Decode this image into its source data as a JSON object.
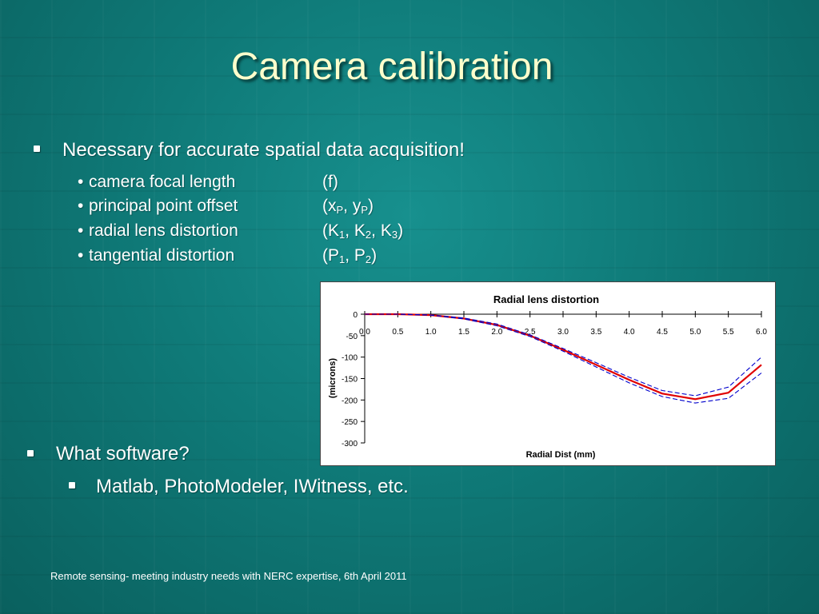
{
  "slide": {
    "title": "Camera calibration",
    "bullets": {
      "main1": "Necessary for accurate spatial data acquisition!",
      "params": [
        {
          "name": "camera focal length",
          "sym_open": "(f)"
        },
        {
          "name": "principal point offset",
          "sym_open": "(x",
          "sub1": "P",
          "mid1": ", y",
          "sub2": "P",
          "close": ")"
        },
        {
          "name": "radial lens distortion",
          "sym_open": "(K",
          "sub1": "1",
          "mid1": ", K",
          "sub2": "2",
          "mid2": ", K",
          "sub3": "3",
          "close": ")"
        },
        {
          "name": "tangential distortion",
          "sym_open": "(P",
          "sub1": "1",
          "mid1": ", P",
          "sub2": "2",
          "close": ")"
        }
      ],
      "main2": "What software?",
      "sub2": "Matlab, PhotoModeler, IWitness, etc."
    },
    "footer": "Remote sensing- meeting industry needs with NERC expertise, 6th April 2011",
    "bullet_char": "•",
    "colors": {
      "title": "#ffffcc",
      "background": "#0f7a78"
    }
  },
  "chart_data": {
    "type": "line",
    "title": "Radial lens distortion",
    "xlabel": "Radial Dist (mm)",
    "ylabel": "(microns)",
    "x": [
      0.0,
      0.5,
      1.0,
      1.5,
      2.0,
      2.5,
      3.0,
      3.5,
      4.0,
      4.5,
      5.0,
      5.5,
      6.0
    ],
    "x_tick_labels": [
      "0.0",
      "0.5",
      "1.0",
      "1.5",
      "2.0",
      "2.5",
      "3.0",
      "3.5",
      "4.0",
      "4.5",
      "5.0",
      "5.5",
      "6.0"
    ],
    "y_ticks": [
      0,
      -50,
      -100,
      -150,
      -200,
      -250,
      -300
    ],
    "y_tick_labels": [
      "0",
      "-50",
      "-100",
      "-150",
      "-200",
      "-250",
      "-300"
    ],
    "xlim": [
      0,
      6
    ],
    "ylim": [
      -300,
      0
    ],
    "grid": false,
    "legend": "none",
    "series": [
      {
        "style": "solid",
        "color": "#e00000",
        "values": [
          0,
          0,
          -2,
          -10,
          -25,
          -50,
          -83,
          -118,
          -153,
          -185,
          -198,
          -183,
          -118
        ]
      },
      {
        "style": "dashed",
        "color": "#0000cc",
        "values": [
          0,
          0,
          -2,
          -9,
          -23,
          -48,
          -80,
          -113,
          -147,
          -178,
          -190,
          -170,
          -100
        ]
      },
      {
        "style": "dashed",
        "color": "#0000cc",
        "values": [
          0,
          0,
          -2,
          -11,
          -27,
          -52,
          -86,
          -123,
          -160,
          -192,
          -207,
          -196,
          -137
        ]
      }
    ]
  }
}
